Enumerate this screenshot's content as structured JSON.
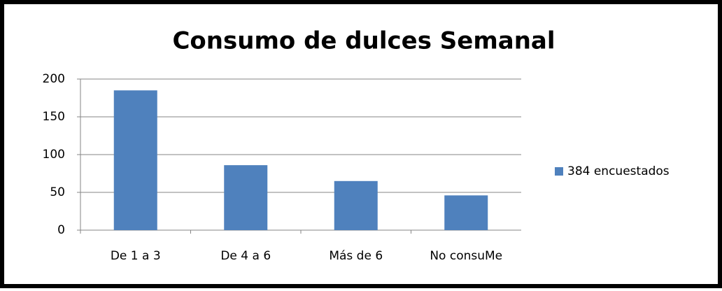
{
  "chart_data": {
    "type": "bar",
    "title": "Consumo de dulces Semanal",
    "categories": [
      "De 1 a 3",
      "De 4 a 6",
      "Más de 6",
      "No consuMe"
    ],
    "series": [
      {
        "name": "384 encuestados",
        "color": "#4f81bd",
        "values": [
          185,
          86,
          65,
          46
        ]
      }
    ],
    "ylim": [
      0,
      200
    ],
    "yticks": [
      0,
      50,
      100,
      150,
      200
    ],
    "grid": true,
    "legend": "right"
  }
}
